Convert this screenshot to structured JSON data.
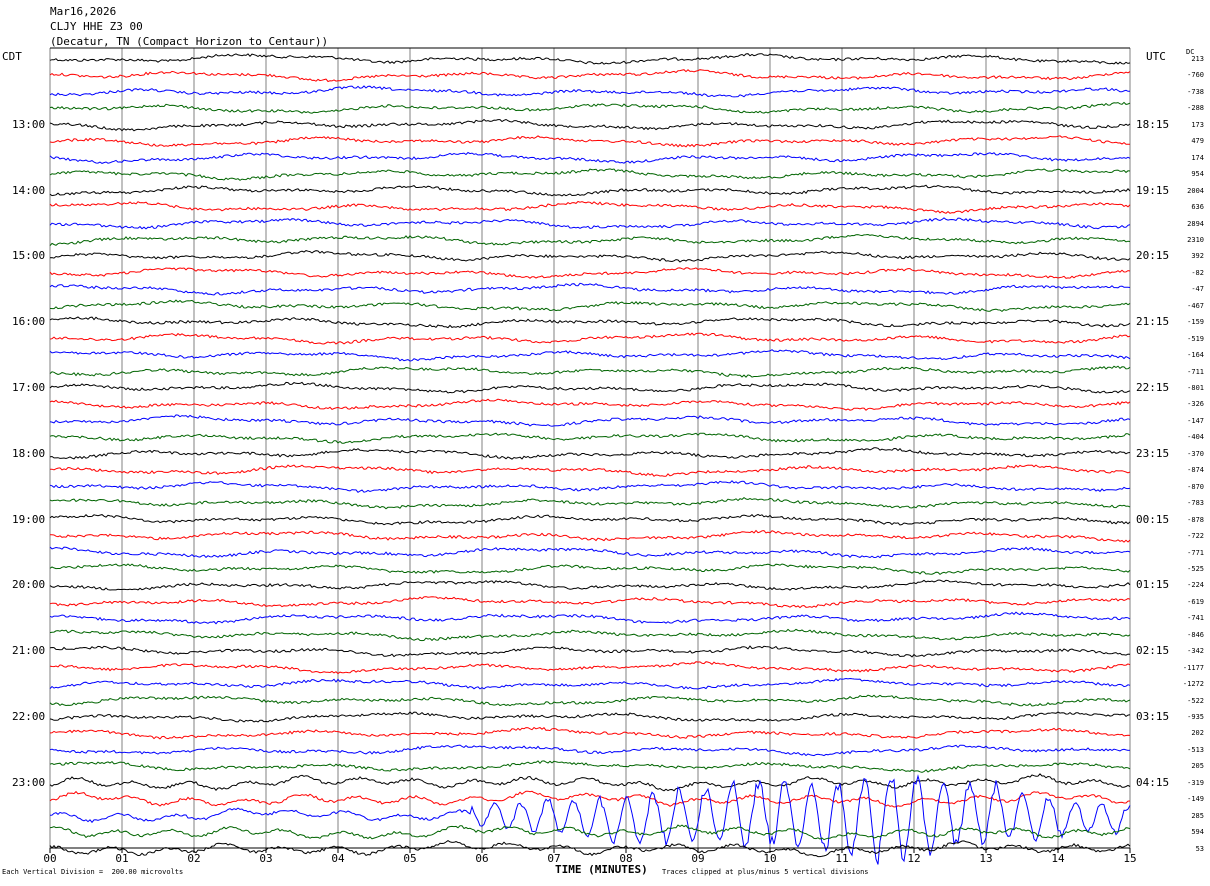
{
  "header": {
    "date": "Mar16,2026",
    "station": "CLJY HHE Z3 00",
    "location": "(Decatur, TN (Compact Horizon to Centaur))"
  },
  "left_axis_label": "CDT",
  "right_axis_label": "UTC",
  "dc_label": "DC",
  "x_axis_title": "TIME (MINUTES)",
  "footer_left": "Each Vertical Division =  200.00 microvolts",
  "footer_right": "Traces clipped at plus/minus 5 vertical divisions",
  "colors": {
    "black": "#000000",
    "red": "#ff0000",
    "blue": "#0000ff",
    "green": "#006400",
    "grid": "#808080"
  },
  "chart_data": {
    "type": "line",
    "title": "CLJY HHE Z3 00",
    "xlabel": "TIME (MINUTES)",
    "xlim": [
      0,
      15
    ],
    "x_ticks": [
      "00",
      "01",
      "02",
      "03",
      "04",
      "05",
      "06",
      "07",
      "08",
      "09",
      "10",
      "11",
      "12",
      "13",
      "14",
      "15"
    ],
    "left_time_labels": [
      "13:00",
      "14:00",
      "15:00",
      "16:00",
      "17:00",
      "18:00",
      "19:00",
      "20:00",
      "21:00",
      "22:00",
      "23:00"
    ],
    "right_time_labels": [
      "18:15",
      "19:15",
      "20:15",
      "21:15",
      "22:15",
      "23:15",
      "00:15",
      "01:15",
      "02:15",
      "03:15",
      "04:15"
    ],
    "trace_color_cycle": [
      "black",
      "red",
      "blue",
      "green"
    ],
    "dc_offsets": [
      "213",
      "-760",
      "-738",
      "-288",
      "173",
      "479",
      "174",
      "954",
      "2004",
      "636",
      "2894",
      "2310",
      "392",
      "-82",
      "-47",
      "-467",
      "-159",
      "-519",
      "-164",
      "-711",
      "-801",
      "-326",
      "-147",
      "-404",
      "-370",
      "-874",
      "-870",
      "-783",
      "-878",
      "-722",
      "-771",
      "-525",
      "-224",
      "-619",
      "-741",
      "-846",
      "-342",
      "-1177",
      "-1272",
      "-522",
      "-935",
      "202",
      "-513",
      "205",
      "-319",
      "-149",
      "285",
      "594",
      "53"
    ],
    "units_per_division_microvolts": 200.0,
    "clip_divisions": 5
  }
}
